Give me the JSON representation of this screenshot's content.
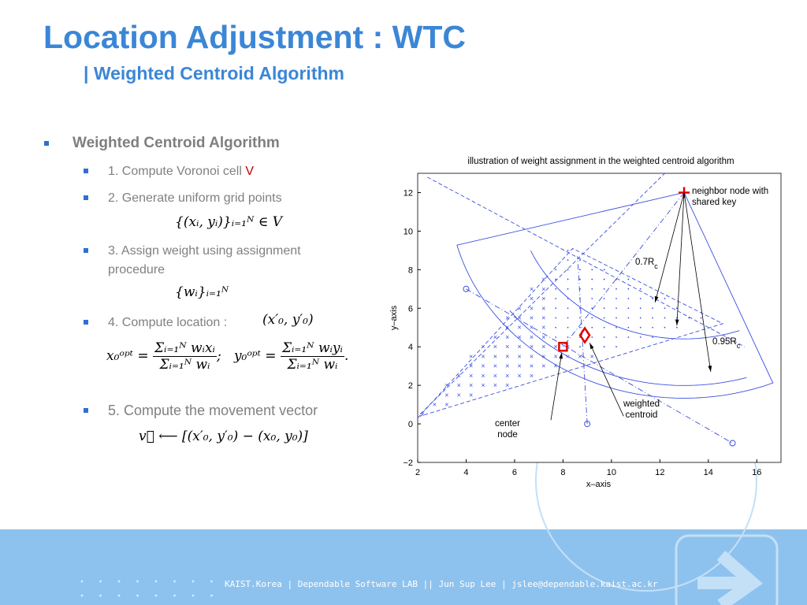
{
  "header": {
    "title": "Location Adjustment : WTC",
    "subtitle": "| Weighted Centroid Algorithm"
  },
  "bullets": {
    "main": "Weighted Centroid Algorithm",
    "steps": [
      {
        "text": "1. Compute Voronoi cell ",
        "highlight": "V"
      },
      {
        "text": "2. Generate uniform grid points",
        "formula": "{(xᵢ, yᵢ)}ᵢ₌₁ᴺ ∈ V"
      },
      {
        "text": "3. Assign weight using assignment procedure",
        "formula": "{wᵢ}ᵢ₌₁ᴺ"
      },
      {
        "text": "4. Compute location :",
        "formula": "(x′₀, y′₀)"
      },
      {
        "text": "5. Compute the movement vector",
        "formula": "v⃗ ⟵ [(x′₀, y′₀) − (x₀, y₀)]"
      }
    ],
    "equation": {
      "x_lhs": "x₀ᵒᵖᵗ =",
      "x_num": "Σᵢ₌₁ᴺ wᵢxᵢ",
      "x_den": "Σᵢ₌₁ᴺ wᵢ",
      "sep": ";",
      "y_lhs": "y₀ᵒᵖᵗ =",
      "y_num": "Σᵢ₌₁ᴺ wᵢyᵢ",
      "y_den": "Σᵢ₌₁ᴺ wᵢ",
      "end": "."
    }
  },
  "figure": {
    "title": "illustration of weight assignment in the weighted centroid algorithm",
    "xlabel": "x–axis",
    "ylabel": "y–axis",
    "xlim": [
      2,
      17
    ],
    "ylim": [
      -2,
      13
    ],
    "xticks": [
      2,
      4,
      6,
      8,
      10,
      12,
      14,
      16
    ],
    "yticks": [
      {
        "value": -2,
        "label": "−2"
      },
      0,
      2,
      4,
      6,
      8,
      10,
      12
    ],
    "annotations": {
      "neighbor": [
        "neighbor node with",
        "shared key"
      ],
      "r07": {
        "text": "0.7R",
        "sub": "c"
      },
      "r095": {
        "text": "0.95R",
        "sub": "c"
      },
      "centroid": [
        "weighted",
        "centroid"
      ],
      "center": [
        "center",
        "node"
      ]
    }
  },
  "footer": "KAIST.Korea | Dependable Software LAB || Jun Sup Lee | jslee@dependable.kaist.ac.kr"
}
